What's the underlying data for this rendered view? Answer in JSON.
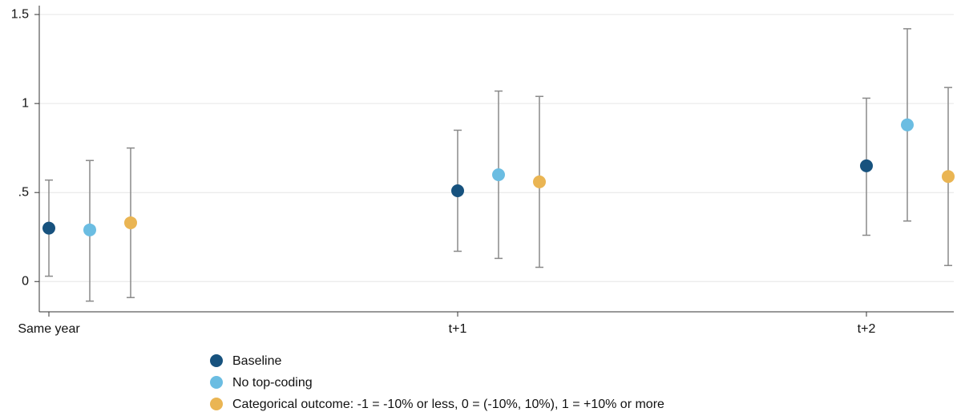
{
  "chart_data": {
    "type": "errorbar",
    "categories": [
      "Same year",
      "t+1",
      "t+2"
    ],
    "series": [
      {
        "name": "Baseline",
        "color": "#17527e",
        "values": [
          0.3,
          0.51,
          0.65
        ],
        "lower": [
          0.03,
          0.17,
          0.26
        ],
        "upper": [
          0.57,
          0.85,
          1.03
        ]
      },
      {
        "name": "No top-coding",
        "color": "#6bbde2",
        "values": [
          0.29,
          0.6,
          0.88
        ],
        "lower": [
          -0.11,
          0.13,
          0.34
        ],
        "upper": [
          0.68,
          1.07,
          1.42
        ]
      },
      {
        "name": "Categorical outcome: -1 = -10% or less, 0 = (-10%, 10%), 1 = +10% or more",
        "color": "#eab553",
        "values": [
          0.33,
          0.56,
          0.59
        ],
        "lower": [
          -0.09,
          0.08,
          0.09
        ],
        "upper": [
          0.75,
          1.04,
          1.09
        ]
      }
    ],
    "ylim": [
      -0.17,
      1.55
    ],
    "yticks": [
      0,
      {
        "value": 0.5,
        "label": ".5"
      },
      1,
      1.5
    ],
    "grid": true
  }
}
